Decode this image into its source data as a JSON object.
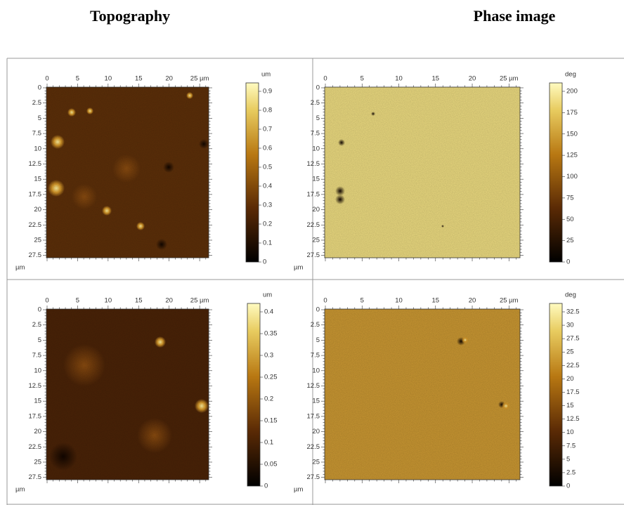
{
  "header": {
    "left": "Topography",
    "right": "Phase image"
  },
  "panels": [
    {
      "x_ticks": [
        "0",
        "5",
        "10",
        "15",
        "20",
        "25 µm"
      ],
      "y_ticks": [
        "0",
        "2.5",
        "5",
        "7.5",
        "10",
        "12.5",
        "15",
        "17.5",
        "20",
        "22.5",
        "25",
        "27.5"
      ],
      "y_unit": "µm",
      "colorbar_unit": "um",
      "colorbar_ticks": [
        "0.9",
        "0.8",
        "0.7",
        "0.6",
        "0.5",
        "0.4",
        "0.3",
        "0.2",
        "0.1",
        "0"
      ]
    },
    {
      "x_ticks": [
        "0",
        "5",
        "10",
        "15",
        "20",
        "25 µm"
      ],
      "y_ticks": [
        "0",
        "2.5",
        "5",
        "7.5",
        "10",
        "12.5",
        "15",
        "17.5",
        "20",
        "22.5",
        "25",
        "27.5"
      ],
      "y_unit": "µm",
      "colorbar_unit": "deg",
      "colorbar_ticks": [
        "200",
        "175",
        "150",
        "125",
        "100",
        "75",
        "50",
        "25",
        "0"
      ]
    },
    {
      "x_ticks": [
        "0",
        "5",
        "10",
        "15",
        "20",
        "25 µm"
      ],
      "y_ticks": [
        "0",
        "2.5",
        "5",
        "7.5",
        "10",
        "12.5",
        "15",
        "17.5",
        "20",
        "22.5",
        "25",
        "27.5"
      ],
      "y_unit": "µm",
      "colorbar_unit": "um",
      "colorbar_ticks": [
        "0.4",
        "0.35",
        "0.3",
        "0.25",
        "0.2",
        "0.15",
        "0.1",
        "0.05",
        "0"
      ]
    },
    {
      "x_ticks": [
        "0",
        "5",
        "10",
        "15",
        "20",
        "25 µm"
      ],
      "y_ticks": [
        "0",
        "2.5",
        "5",
        "7.5",
        "10",
        "12.5",
        "15",
        "17.5",
        "20",
        "22.5",
        "25",
        "27.5"
      ],
      "y_unit": "µm",
      "colorbar_unit": "deg",
      "colorbar_ticks": [
        "32.5",
        "30",
        "27.5",
        "25",
        "22.5",
        "20",
        "17.5",
        "15",
        "12.5",
        "10",
        "7.5",
        "5",
        "2.5",
        "0"
      ]
    }
  ]
}
